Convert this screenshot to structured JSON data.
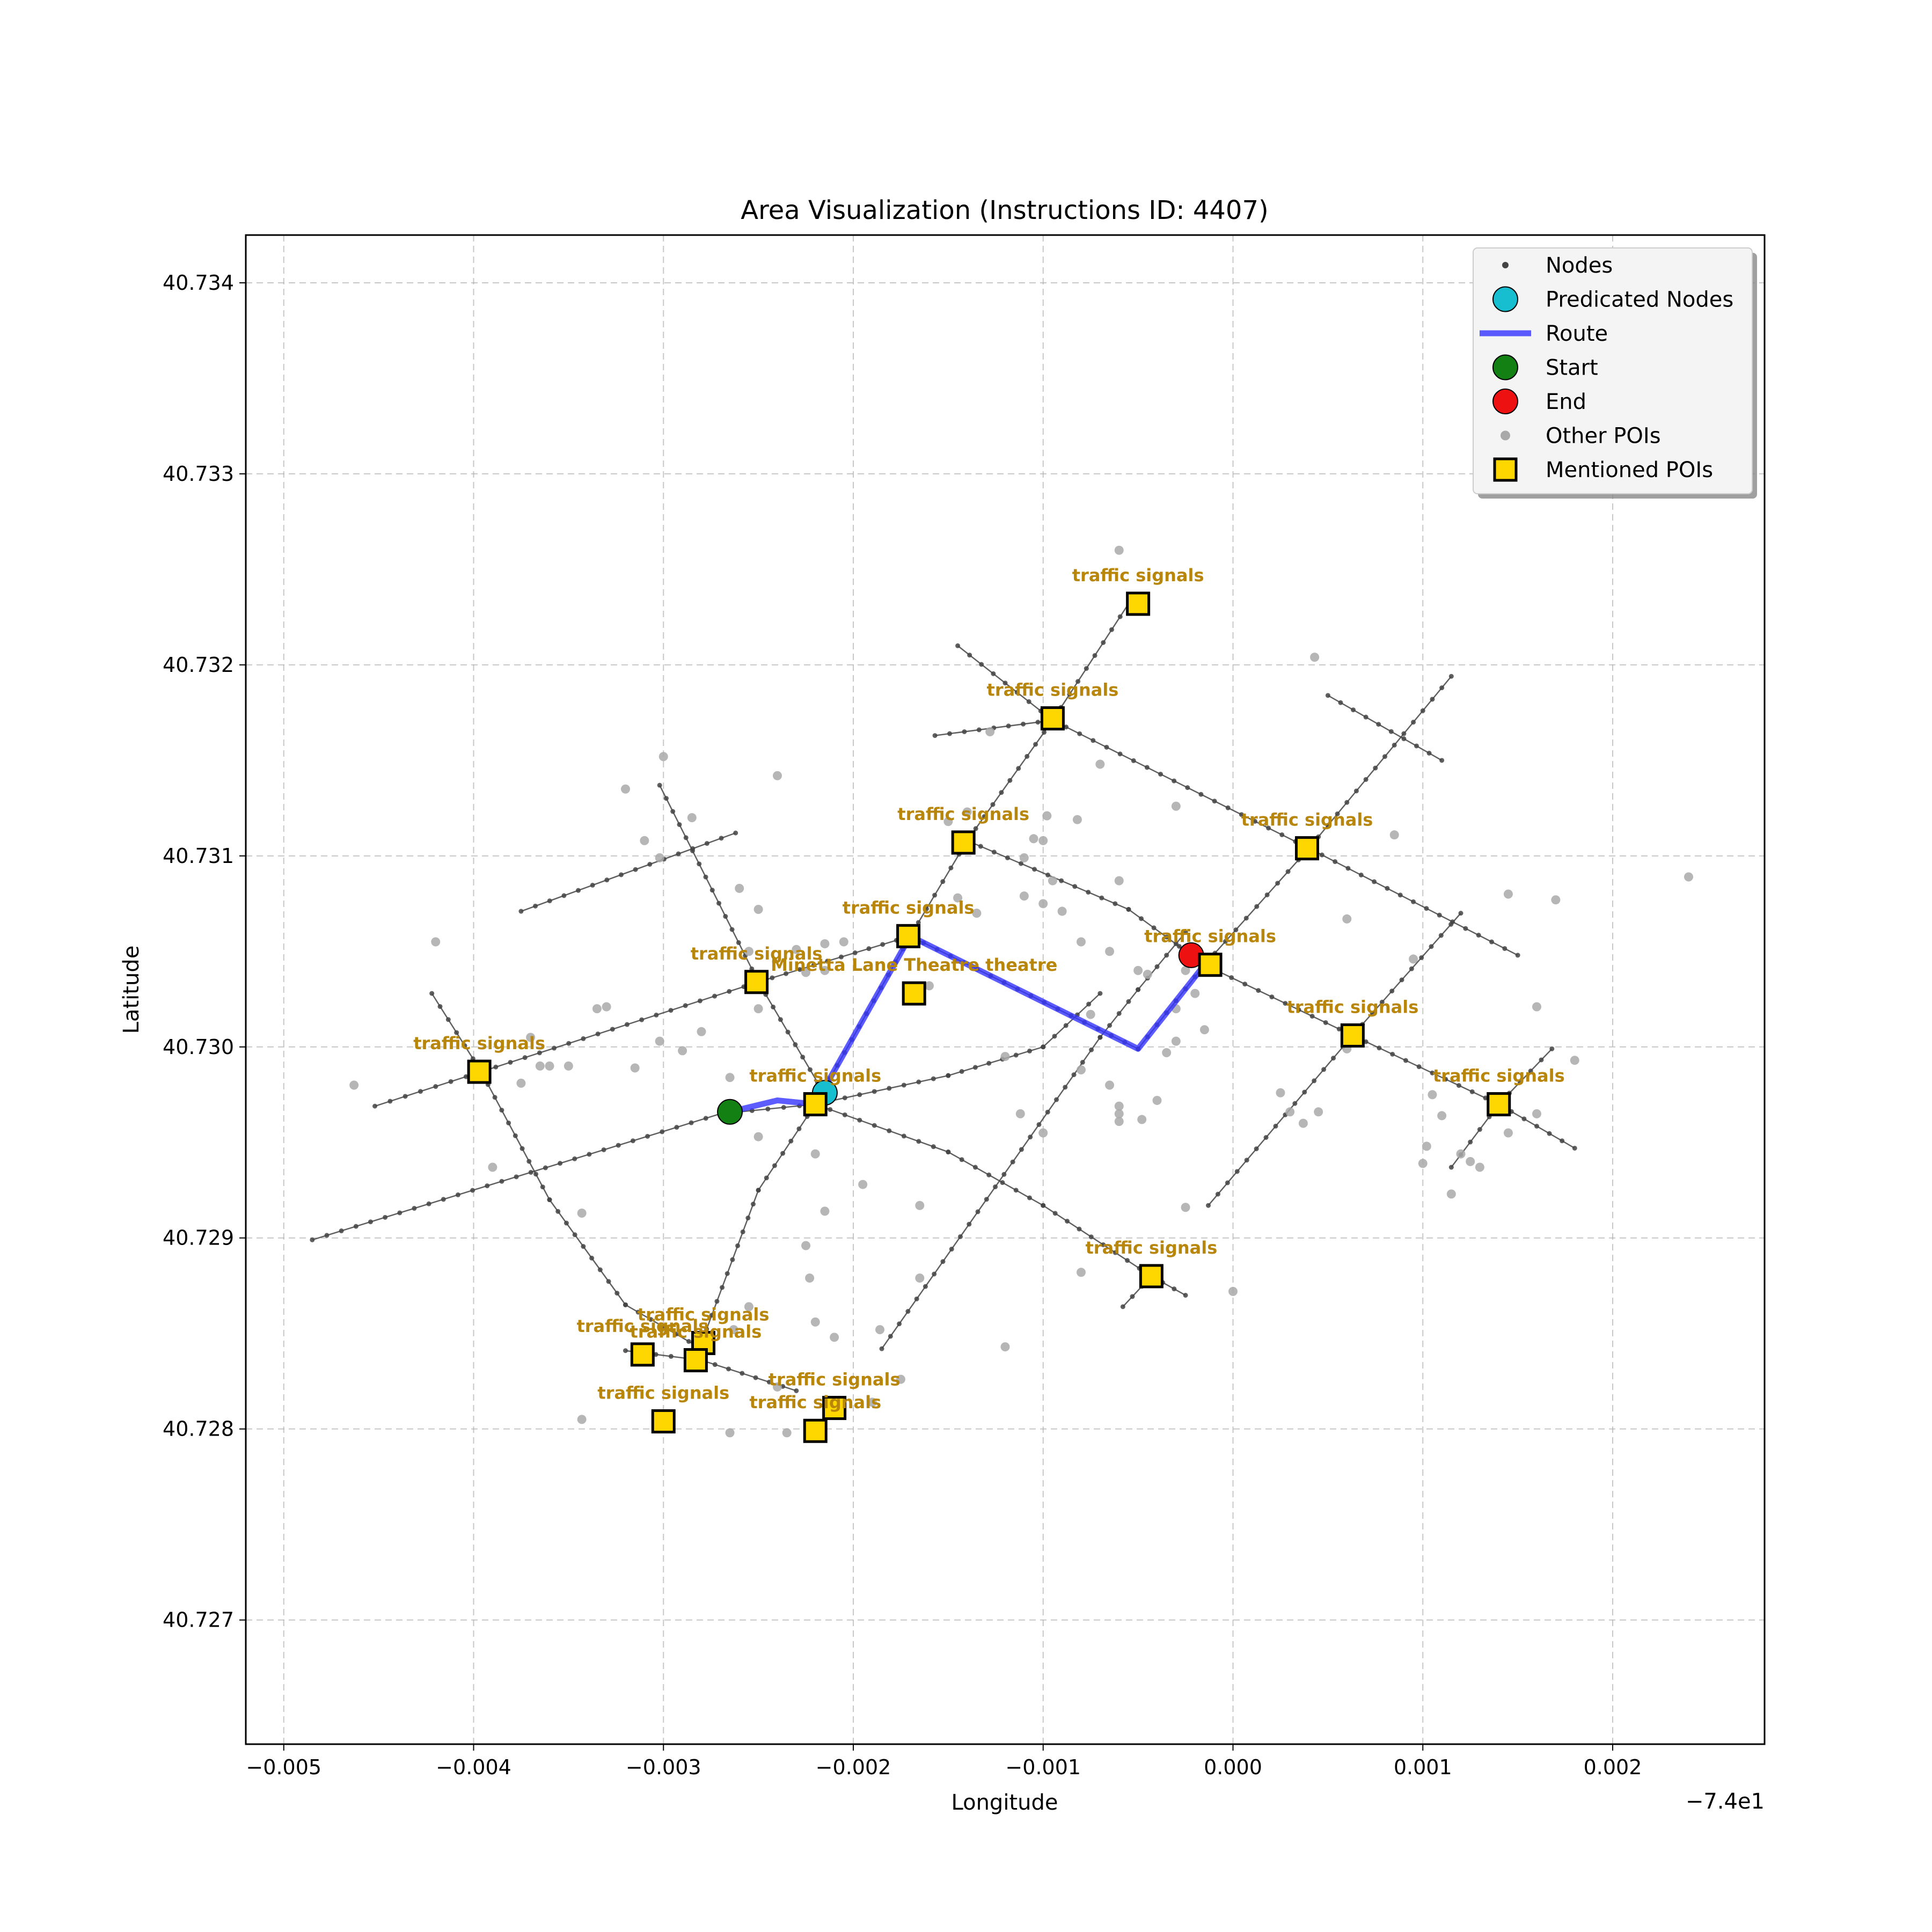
{
  "chart_data": {
    "type": "scatter",
    "title": "Area Visualization (Instructions ID: 4407)",
    "xlabel": "Longitude",
    "ylabel": "Latitude",
    "x_offset_label": "−7.4e1",
    "xlim": [
      -0.0052,
      0.0028
    ],
    "ylim": [
      40.72635,
      40.73425
    ],
    "x_ticks": [
      -0.005,
      -0.004,
      -0.003,
      -0.002,
      -0.001,
      0.0,
      0.001,
      0.002
    ],
    "x_tick_labels": [
      "−0.005",
      "−0.004",
      "−0.003",
      "−0.002",
      "−0.001",
      "0.000",
      "0.001",
      "0.002"
    ],
    "y_ticks": [
      40.727,
      40.728,
      40.729,
      40.73,
      40.731,
      40.732,
      40.733,
      40.734
    ],
    "y_tick_labels": [
      "40.727",
      "40.728",
      "40.729",
      "40.730",
      "40.731",
      "40.732",
      "40.733",
      "40.734"
    ],
    "grid": true,
    "legend_position": "upper right",
    "legend": [
      {
        "label": "Nodes",
        "marker": "small-dot"
      },
      {
        "label": "Predicated Nodes",
        "marker": "circle-cyan"
      },
      {
        "label": "Route",
        "marker": "line-blue"
      },
      {
        "label": "Start",
        "marker": "circle-green"
      },
      {
        "label": "End",
        "marker": "circle-red"
      },
      {
        "label": "Other POIs",
        "marker": "dot-gray"
      },
      {
        "label": "Mentioned POIs",
        "marker": "square-gold"
      }
    ],
    "colors": {
      "node": "#444444",
      "predicated": "#17becf",
      "route": "#3333ff",
      "start": "#138013",
      "end": "#ee1111",
      "other_poi": "#a9a9a9",
      "mentioned_poi": "#ffd700",
      "poi_label": "#b8860b"
    },
    "streets": [
      [
        [
          -0.00485,
          40.72899
        ],
        [
          -0.0027,
          40.72965
        ],
        [
          -0.0022,
          40.7297
        ],
        [
          -0.0015,
          40.72985
        ],
        [
          -0.001,
          40.73
        ],
        [
          -0.0007,
          40.73028
        ]
      ],
      [
        [
          -0.00452,
          40.72969
        ],
        [
          -0.00396,
          40.72987
        ],
        [
          -0.0025,
          40.73034
        ],
        [
          -0.0017,
          40.73058
        ]
      ],
      [
        [
          -0.00375,
          40.73071
        ],
        [
          -0.00262,
          40.73112
        ]
      ],
      [
        [
          -0.00302,
          40.73137
        ],
        [
          -0.0025,
          40.73034
        ],
        [
          -0.00215,
          40.72975
        ]
      ],
      [
        [
          -0.00422,
          40.73028
        ],
        [
          -0.00396,
          40.72987
        ],
        [
          -0.0036,
          40.7292
        ],
        [
          -0.0032,
          40.72865
        ],
        [
          -0.0028,
          40.72842
        ]
      ],
      [
        [
          -0.0032,
          40.72841
        ],
        [
          -0.0028,
          40.72836
        ],
        [
          -0.0023,
          40.7282
        ]
      ],
      [
        [
          -0.0028,
          40.72845
        ],
        [
          -0.0025,
          40.72925
        ],
        [
          -0.0022,
          40.7297
        ],
        [
          -0.0017,
          40.73058
        ],
        [
          -0.0014,
          40.73108
        ],
        [
          -0.00095,
          40.73171
        ],
        [
          -0.00055,
          40.73232
        ]
      ],
      [
        [
          -0.0022,
          40.7297
        ],
        [
          -0.0015,
          40.72945
        ],
        [
          -0.001,
          40.72917
        ],
        [
          -0.00043,
          40.7288
        ],
        [
          -0.00025,
          40.7287
        ]
      ],
      [
        [
          -0.0017,
          40.73058
        ],
        [
          -0.0005,
          40.72999
        ],
        [
          -0.00015,
          40.73043
        ],
        [
          0.0004,
          40.73104
        ],
        [
          0.00115,
          40.73194
        ]
      ],
      [
        [
          -0.0014,
          40.73108
        ],
        [
          -0.00055,
          40.73072
        ],
        [
          -0.00015,
          40.73043
        ],
        [
          0.00063,
          40.73006
        ],
        [
          0.0014,
          40.7297
        ],
        [
          0.0018,
          40.72947
        ]
      ],
      [
        [
          -0.00095,
          40.73171
        ],
        [
          0.0004,
          40.73104
        ],
        [
          0.0015,
          40.73048
        ]
      ],
      [
        [
          -0.00145,
          40.7321
        ],
        [
          -0.00095,
          40.73171
        ]
      ],
      [
        [
          -0.00157,
          40.73163
        ],
        [
          -0.00095,
          40.73171
        ]
      ],
      [
        [
          0.0005,
          40.73184
        ],
        [
          0.0011,
          40.7315
        ]
      ],
      [
        [
          -0.00185,
          40.72842
        ],
        [
          -0.0007,
          40.73005
        ],
        [
          -0.0005,
          40.7303
        ],
        [
          -0.00025,
          40.7306
        ]
      ],
      [
        [
          -0.00013,
          40.72917
        ],
        [
          0.00063,
          40.73006
        ],
        [
          0.0012,
          40.7307
        ]
      ],
      [
        [
          0.00115,
          40.72937
        ],
        [
          0.0014,
          40.7297
        ],
        [
          0.00168,
          40.72999
        ]
      ],
      [
        [
          -0.00058,
          40.72864
        ],
        [
          -0.00043,
          40.7288
        ]
      ]
    ],
    "route": [
      [
        -0.00265,
        40.72966
      ],
      [
        -0.0024,
        40.72972
      ],
      [
        -0.0022,
        40.7297
      ],
      [
        -0.0017,
        40.73058
      ],
      [
        -0.0005,
        40.72999
      ],
      [
        -0.00015,
        40.73043
      ]
    ],
    "start": [
      -0.00265,
      40.72966
    ],
    "end": [
      -0.00022,
      40.73048
    ],
    "predicated_nodes": [
      [
        -0.00215,
        40.72976
      ]
    ],
    "other_pois": [
      [
        -0.00463,
        40.7298
      ],
      [
        -0.0042,
        40.73055
      ],
      [
        -0.0039,
        40.72937
      ],
      [
        -0.00375,
        40.72981
      ],
      [
        -0.00365,
        40.7299
      ],
      [
        -0.0037,
        40.73005
      ],
      [
        -0.0036,
        40.7299
      ],
      [
        -0.0035,
        40.7299
      ],
      [
        -0.00343,
        40.72913
      ],
      [
        -0.00343,
        40.72805
      ],
      [
        -0.00335,
        40.7302
      ],
      [
        -0.0033,
        40.73021
      ],
      [
        -0.00315,
        40.72989
      ],
      [
        -0.0032,
        40.73135
      ],
      [
        -0.0031,
        40.73108
      ],
      [
        -0.003,
        40.73152
      ],
      [
        -0.00302,
        40.73099
      ],
      [
        -0.00302,
        40.73003
      ],
      [
        -0.0029,
        40.72998
      ],
      [
        -0.00285,
        40.7312
      ],
      [
        -0.0028,
        40.73008
      ],
      [
        -0.00265,
        40.72984
      ],
      [
        -0.0026,
        40.73083
      ],
      [
        -0.0025,
        40.73072
      ],
      [
        -0.00265,
        40.72798
      ],
      [
        -0.00263,
        40.72852
      ],
      [
        -0.00255,
        40.72864
      ],
      [
        -0.0025,
        40.7302
      ],
      [
        -0.0025,
        40.72953
      ],
      [
        -0.0024,
        40.72822
      ],
      [
        -0.00235,
        40.72798
      ],
      [
        -0.00225,
        40.72896
      ],
      [
        -0.00223,
        40.72879
      ],
      [
        -0.0022,
        40.72856
      ],
      [
        -0.0022,
        40.72944
      ],
      [
        -0.00215,
        40.72914
      ],
      [
        -0.00225,
        40.73039
      ],
      [
        -0.0023,
        40.73051
      ],
      [
        -0.00215,
        40.73054
      ],
      [
        -0.00215,
        40.7304
      ],
      [
        -0.00205,
        40.73055
      ],
      [
        -0.0021,
        40.72848
      ],
      [
        -0.00195,
        40.72928
      ],
      [
        -0.0019,
        40.72814
      ],
      [
        -0.00186,
        40.72852
      ],
      [
        -0.00175,
        40.72826
      ],
      [
        -0.00165,
        40.72917
      ],
      [
        -0.00165,
        40.72879
      ],
      [
        -0.00255,
        40.7305
      ],
      [
        -0.0024,
        40.73142
      ],
      [
        -0.0016,
        40.73032
      ],
      [
        -0.0015,
        40.73118
      ],
      [
        -0.00145,
        40.73078
      ],
      [
        -0.0014,
        40.73123
      ],
      [
        -0.00135,
        40.7307
      ],
      [
        -0.0012,
        40.72843
      ],
      [
        -0.00128,
        40.73165
      ],
      [
        -0.0011,
        40.73099
      ],
      [
        -0.0011,
        40.73079
      ],
      [
        -0.00105,
        40.73109
      ],
      [
        -0.00098,
        40.73121
      ],
      [
        -0.00095,
        40.73087
      ],
      [
        -0.001,
        40.73075
      ],
      [
        -0.001,
        40.73108
      ],
      [
        -0.00082,
        40.73119
      ],
      [
        -0.0008,
        40.73055
      ],
      [
        -0.0009,
        40.73071
      ],
      [
        -0.0008,
        40.72882
      ],
      [
        -0.00075,
        40.73017
      ],
      [
        -0.0007,
        40.73148
      ],
      [
        -0.00065,
        40.7305
      ],
      [
        -0.0006,
        40.7326
      ],
      [
        -0.0006,
        40.73087
      ],
      [
        -0.0012,
        40.72995
      ],
      [
        -0.00112,
        40.72965
      ],
      [
        -0.001,
        40.72955
      ],
      [
        -0.0008,
        40.72988
      ],
      [
        -0.00065,
        40.7298
      ],
      [
        -0.0006,
        40.72969
      ],
      [
        -0.0006,
        40.72961
      ],
      [
        -0.0006,
        40.72965
      ],
      [
        -0.00048,
        40.72962
      ],
      [
        -0.0004,
        40.72972
      ],
      [
        -0.0003,
        40.73003
      ],
      [
        -0.00035,
        40.72997
      ],
      [
        -0.0003,
        40.7302
      ],
      [
        -0.0002,
        40.73028
      ],
      [
        -0.00015,
        40.73009
      ],
      [
        -0.0005,
        40.7304
      ],
      [
        -0.00025,
        40.7304
      ],
      [
        -0.00045,
        40.73038
      ],
      [
        -0.0003,
        40.73126
      ],
      [
        -0.00025,
        40.72916
      ],
      [
        0.0,
        40.72872
      ],
      [
        0.00025,
        40.72976
      ],
      [
        0.0003,
        40.72966
      ],
      [
        0.00037,
        40.7296
      ],
      [
        0.00045,
        40.72966
      ],
      [
        0.0006,
        40.72999
      ],
      [
        0.0006,
        40.73003
      ],
      [
        0.0006,
        40.73067
      ],
      [
        0.00085,
        40.73111
      ],
      [
        0.00043,
        40.73204
      ],
      [
        0.001,
        40.72939
      ],
      [
        0.00102,
        40.72948
      ],
      [
        0.00105,
        40.72975
      ],
      [
        0.0011,
        40.72964
      ],
      [
        0.00115,
        40.72923
      ],
      [
        0.0012,
        40.72944
      ],
      [
        0.00125,
        40.7294
      ],
      [
        0.0013,
        40.72937
      ],
      [
        0.00145,
        40.72955
      ],
      [
        0.0016,
        40.73021
      ],
      [
        0.00145,
        40.7308
      ],
      [
        0.0017,
        40.73077
      ],
      [
        0.0016,
        40.72965
      ],
      [
        0.0018,
        40.72993
      ],
      [
        0.0024,
        40.73089
      ],
      [
        0.00095,
        40.73046
      ]
    ],
    "mentioned_pois": [
      {
        "name": "traffic signals",
        "x": -0.00397,
        "y": 40.72987
      },
      {
        "name": "traffic signals",
        "x": -0.00251,
        "y": 40.73034
      },
      {
        "name": "Minetta Lane Theatre theatre",
        "x": -0.00168,
        "y": 40.73028
      },
      {
        "name": "traffic signals",
        "x": -0.00171,
        "y": 40.73058
      },
      {
        "name": "traffic signals",
        "x": -0.00142,
        "y": 40.73107
      },
      {
        "name": "traffic signals",
        "x": -0.00095,
        "y": 40.73172
      },
      {
        "name": "traffic signals",
        "x": -0.0005,
        "y": 40.73232
      },
      {
        "name": "traffic signals",
        "x": -0.0022,
        "y": 40.7297
      },
      {
        "name": "traffic signals",
        "x": -0.00012,
        "y": 40.73043
      },
      {
        "name": "traffic signals",
        "x": 0.00039,
        "y": 40.73104
      },
      {
        "name": "traffic signals",
        "x": 0.00063,
        "y": 40.73006
      },
      {
        "name": "traffic signals",
        "x": 0.0014,
        "y": 40.7297
      },
      {
        "name": "traffic signals",
        "x": -0.00043,
        "y": 40.7288
      },
      {
        "name": "traffic signals",
        "x": -0.00311,
        "y": 40.72839
      },
      {
        "name": "traffic signals",
        "x": -0.00279,
        "y": 40.72845
      },
      {
        "name": "traffic signals",
        "x": -0.00283,
        "y": 40.72836
      },
      {
        "name": "traffic signals",
        "x": -0.003,
        "y": 40.72804
      },
      {
        "name": "traffic signals",
        "x": -0.0021,
        "y": 40.72811
      },
      {
        "name": "traffic signals",
        "x": -0.0022,
        "y": 40.72799
      }
    ]
  }
}
